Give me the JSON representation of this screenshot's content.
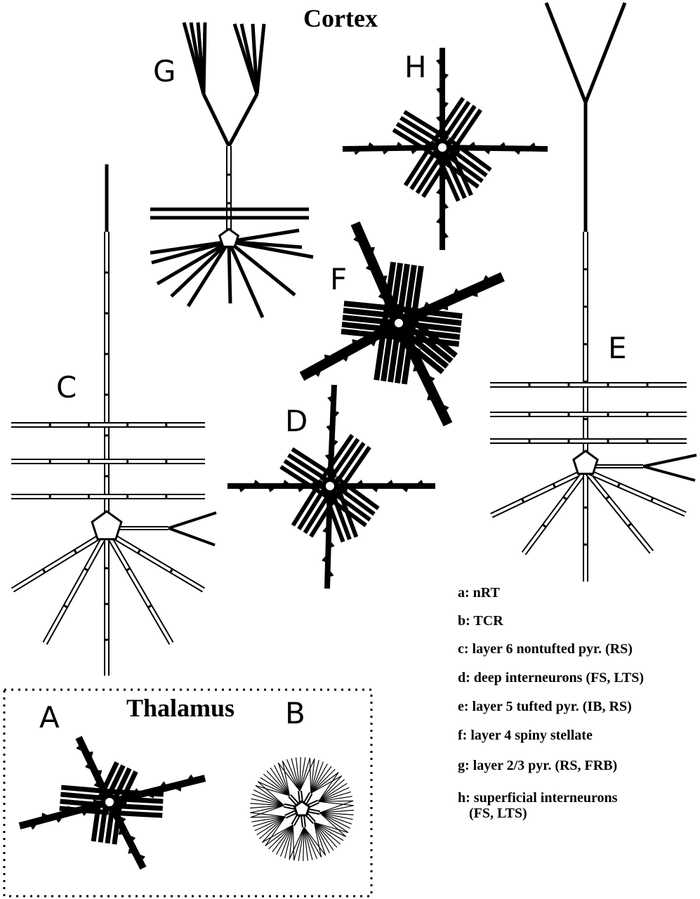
{
  "titles": {
    "cortex": "Cortex",
    "thalamus": "Thalamus"
  },
  "panels": {
    "A": "A",
    "B": "B",
    "C": "C",
    "D": "D",
    "E": "E",
    "F": "F",
    "G": "G",
    "H": "H"
  },
  "legend": [
    "a: nRT",
    "b: TCR",
    "c: layer 6 nontufted pyr.  (RS)",
    "d: deep interneurons  (FS, LTS)",
    "e: layer 5 tufted pyr.  (IB, RS)",
    "f: layer 4 spiny stellate",
    "g: layer 2/3 pyr.   (RS, FRB)",
    "h: superficial interneurons",
    "(FS, LTS)"
  ]
}
